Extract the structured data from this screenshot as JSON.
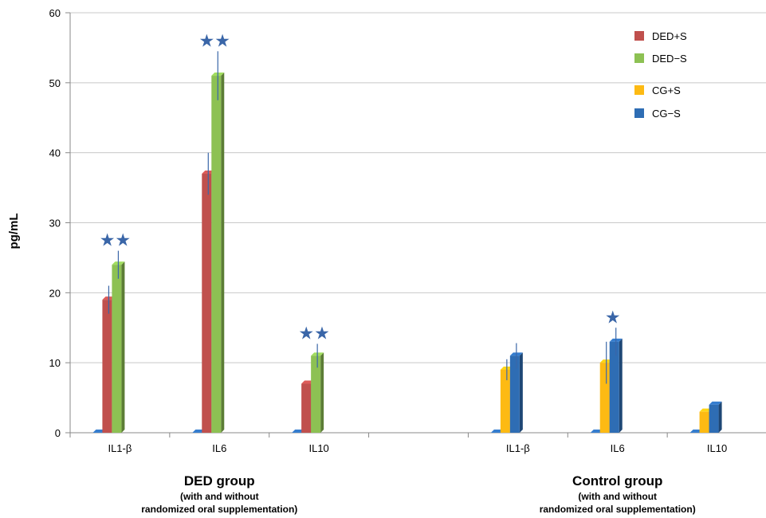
{
  "chart_data": {
    "type": "bar",
    "ylabel": "pg/mL",
    "ylim": [
      0,
      60
    ],
    "yticks": [
      0,
      10,
      20,
      30,
      40,
      50,
      60
    ],
    "grid": true,
    "legend_position": "top-right",
    "colors": {
      "DED+S": "#c0504d",
      "DED−S": "#8dc153",
      "CG+S": "#fdba13",
      "CG−S": "#2e6db4"
    },
    "groups": [
      {
        "title": "DED group",
        "subtitle_line1": "(with and without",
        "subtitle_line2": "randomized oral supplementation)",
        "categories": [
          "IL1-β",
          "IL6",
          "IL10"
        ],
        "series": [
          {
            "name": "CG−S",
            "values": [
              0,
              0,
              0
            ],
            "errors": [
              null,
              null,
              null
            ]
          },
          {
            "name": "DED+S",
            "values": [
              19,
              37,
              7
            ],
            "errors": [
              2.0,
              3.0,
              null
            ]
          },
          {
            "name": "DED−S",
            "values": [
              24,
              51,
              11
            ],
            "errors": [
              2.0,
              3.5,
              1.7
            ]
          }
        ],
        "significance": [
          "★★",
          "★★",
          "★★"
        ]
      },
      {
        "title": "Control group",
        "subtitle_line1": "(with and without",
        "subtitle_line2": "randomized oral supplementation)",
        "categories": [
          "IL1-β",
          "IL6",
          "IL10"
        ],
        "series": [
          {
            "name": "CG−S",
            "values": [
              0,
              0,
              0
            ],
            "errors": [
              null,
              null,
              null
            ]
          },
          {
            "name": "CG+S",
            "values": [
              9,
              10,
              3
            ],
            "errors": [
              1.5,
              3.0,
              null
            ]
          },
          {
            "name": "CG−S",
            "values": [
              11,
              13,
              4
            ],
            "errors": [
              1.8,
              2.0,
              null
            ]
          }
        ],
        "significance": [
          "",
          "★",
          ""
        ]
      }
    ],
    "legend": [
      "DED+S",
      "DED−S",
      "CG+S",
      "CG−S"
    ]
  }
}
